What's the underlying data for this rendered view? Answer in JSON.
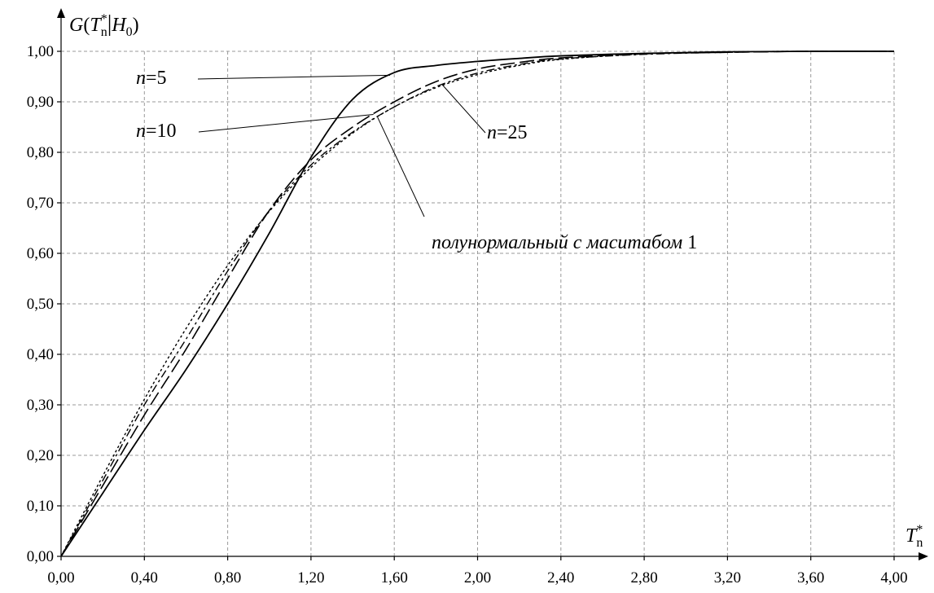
{
  "chart_data": {
    "type": "line",
    "ylabel": "G(T*n|H0)",
    "xlabel": "T*n",
    "xlim": [
      0,
      4
    ],
    "ylim": [
      0,
      1
    ],
    "grid": true,
    "x_ticks": [
      "0,00",
      "0,40",
      "0,80",
      "1,20",
      "1,60",
      "2,00",
      "2,40",
      "2,80",
      "3,20",
      "3,60",
      "4,00"
    ],
    "y_ticks": [
      "0,00",
      "0,10",
      "0,20",
      "0,30",
      "0,40",
      "0,50",
      "0,60",
      "0,70",
      "0,80",
      "0,90",
      "1,00"
    ],
    "series": [
      {
        "name": "n=5",
        "dash": "solid",
        "points": [
          [
            0,
            0
          ],
          [
            0.2,
            0.125
          ],
          [
            0.4,
            0.25
          ],
          [
            0.6,
            0.37
          ],
          [
            0.8,
            0.5
          ],
          [
            1.0,
            0.64
          ],
          [
            1.2,
            0.79
          ],
          [
            1.4,
            0.905
          ],
          [
            1.6,
            0.958
          ],
          [
            1.8,
            0.972
          ],
          [
            2.0,
            0.98
          ],
          [
            2.2,
            0.986
          ],
          [
            2.4,
            0.991
          ],
          [
            2.8,
            0.996
          ],
          [
            3.2,
            0.999
          ],
          [
            3.6,
            1.0
          ],
          [
            4.0,
            1.0
          ]
        ]
      },
      {
        "name": "n=10",
        "dash": "longdash",
        "points": [
          [
            0,
            0
          ],
          [
            0.2,
            0.14
          ],
          [
            0.4,
            0.28
          ],
          [
            0.6,
            0.41
          ],
          [
            0.8,
            0.55
          ],
          [
            1.0,
            0.685
          ],
          [
            1.2,
            0.785
          ],
          [
            1.4,
            0.85
          ],
          [
            1.6,
            0.9
          ],
          [
            1.8,
            0.94
          ],
          [
            2.0,
            0.965
          ],
          [
            2.2,
            0.978
          ],
          [
            2.4,
            0.987
          ],
          [
            2.8,
            0.995
          ],
          [
            3.2,
            0.998
          ],
          [
            3.6,
            1.0
          ],
          [
            4.0,
            1.0
          ]
        ]
      },
      {
        "name": "n=25",
        "dash": "dashdot",
        "points": [
          [
            0,
            0
          ],
          [
            0.2,
            0.15
          ],
          [
            0.4,
            0.3
          ],
          [
            0.6,
            0.43
          ],
          [
            0.8,
            0.565
          ],
          [
            1.0,
            0.685
          ],
          [
            1.2,
            0.775
          ],
          [
            1.4,
            0.84
          ],
          [
            1.6,
            0.89
          ],
          [
            1.8,
            0.93
          ],
          [
            2.0,
            0.957
          ],
          [
            2.2,
            0.974
          ],
          [
            2.4,
            0.985
          ],
          [
            2.8,
            0.994
          ],
          [
            3.2,
            0.998
          ],
          [
            3.6,
            1.0
          ],
          [
            4.0,
            1.0
          ]
        ]
      },
      {
        "name": "полунормальный с маситабом 1",
        "dash": "dotted",
        "points": [
          [
            0,
            0
          ],
          [
            0.2,
            0.159
          ],
          [
            0.4,
            0.311
          ],
          [
            0.6,
            0.451
          ],
          [
            0.8,
            0.576
          ],
          [
            1.0,
            0.683
          ],
          [
            1.2,
            0.77
          ],
          [
            1.4,
            0.838
          ],
          [
            1.6,
            0.89
          ],
          [
            1.8,
            0.928
          ],
          [
            2.0,
            0.954
          ],
          [
            2.2,
            0.972
          ],
          [
            2.4,
            0.984
          ],
          [
            2.8,
            0.995
          ],
          [
            3.2,
            0.999
          ],
          [
            3.6,
            1.0
          ],
          [
            4.0,
            1.0
          ]
        ]
      }
    ],
    "annotations": [
      {
        "id": "n5",
        "prefix": "n",
        "suffix": "=5",
        "series": 0,
        "x_target": 1.58
      },
      {
        "id": "n10",
        "prefix": "n",
        "suffix": "=10",
        "series": 1,
        "x_target": 1.5
      },
      {
        "id": "n25",
        "prefix": "n",
        "suffix": "=25",
        "series": 2,
        "x_target": 1.83
      },
      {
        "id": "half",
        "prefix": "полунормальный с маситабом",
        "suffix": " 1",
        "series": 3,
        "x_target": 1.52
      }
    ]
  }
}
